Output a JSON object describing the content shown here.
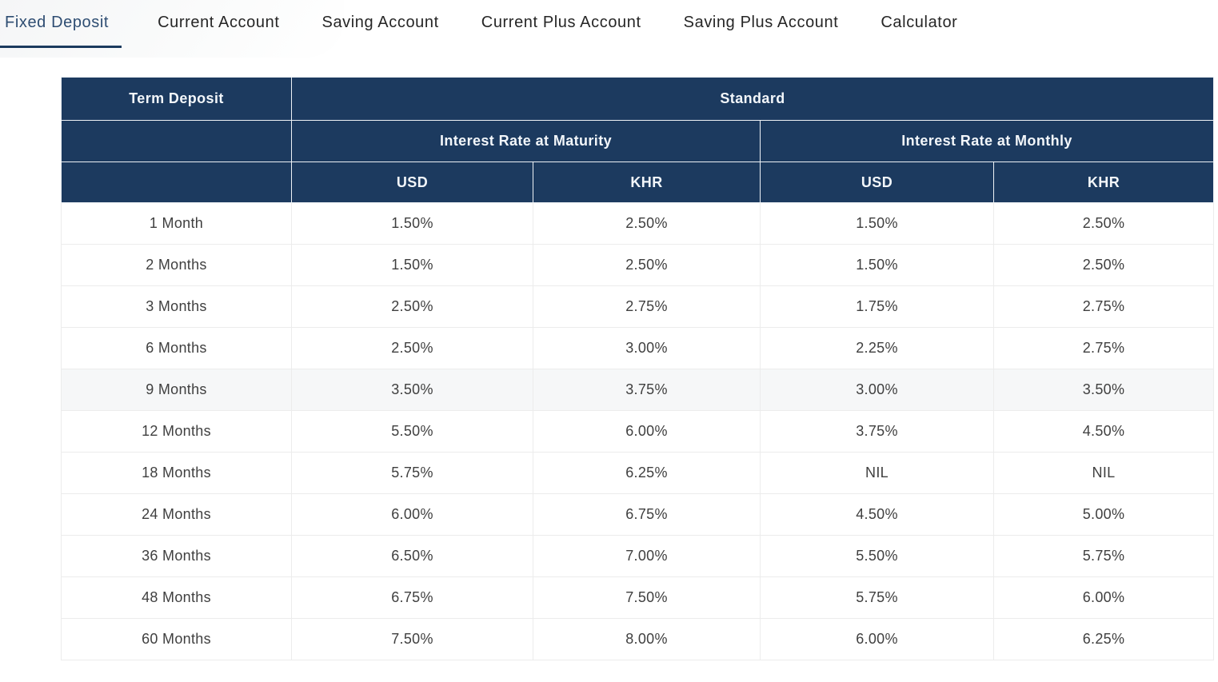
{
  "tabs": {
    "items": [
      {
        "label": "Fixed Deposit",
        "active": true
      },
      {
        "label": "Current Account",
        "active": false
      },
      {
        "label": "Saving Account",
        "active": false
      },
      {
        "label": "Current Plus Account",
        "active": false
      },
      {
        "label": "Saving Plus Account",
        "active": false
      },
      {
        "label": "Calculator",
        "active": false
      }
    ]
  },
  "colors": {
    "header_bg": "#1c3a5f",
    "header_text": "#f2f6fa",
    "active_tab": "#2e4d72",
    "tab_underline": "#1b3a5e",
    "row_highlight": "#f6f7f8"
  },
  "table": {
    "header": {
      "term": "Term Deposit",
      "group": "Standard",
      "maturity": "Interest Rate at Maturity",
      "monthly": "Interest Rate at Monthly",
      "currencies": [
        "USD",
        "KHR",
        "USD",
        "KHR"
      ]
    },
    "rows": [
      {
        "term": "1 Month",
        "values": [
          "1.50%",
          "2.50%",
          "1.50%",
          "2.50%"
        ],
        "highlighted": false
      },
      {
        "term": "2 Months",
        "values": [
          "1.50%",
          "2.50%",
          "1.50%",
          "2.50%"
        ],
        "highlighted": false
      },
      {
        "term": "3 Months",
        "values": [
          "2.50%",
          "2.75%",
          "1.75%",
          "2.75%"
        ],
        "highlighted": false
      },
      {
        "term": "6 Months",
        "values": [
          "2.50%",
          "3.00%",
          "2.25%",
          "2.75%"
        ],
        "highlighted": false
      },
      {
        "term": "9 Months",
        "values": [
          "3.50%",
          "3.75%",
          "3.00%",
          "3.50%"
        ],
        "highlighted": true
      },
      {
        "term": "12 Months",
        "values": [
          "5.50%",
          "6.00%",
          "3.75%",
          "4.50%"
        ],
        "highlighted": false
      },
      {
        "term": "18 Months",
        "values": [
          "5.75%",
          "6.25%",
          "NIL",
          "NIL"
        ],
        "highlighted": false
      },
      {
        "term": "24 Months",
        "values": [
          "6.00%",
          "6.75%",
          "4.50%",
          "5.00%"
        ],
        "highlighted": false
      },
      {
        "term": "36 Months",
        "values": [
          "6.50%",
          "7.00%",
          "5.50%",
          "5.75%"
        ],
        "highlighted": false
      },
      {
        "term": "48 Months",
        "values": [
          "6.75%",
          "7.50%",
          "5.75%",
          "6.00%"
        ],
        "highlighted": false
      },
      {
        "term": "60 Months",
        "values": [
          "7.50%",
          "8.00%",
          "6.00%",
          "6.25%"
        ],
        "highlighted": false
      }
    ]
  }
}
